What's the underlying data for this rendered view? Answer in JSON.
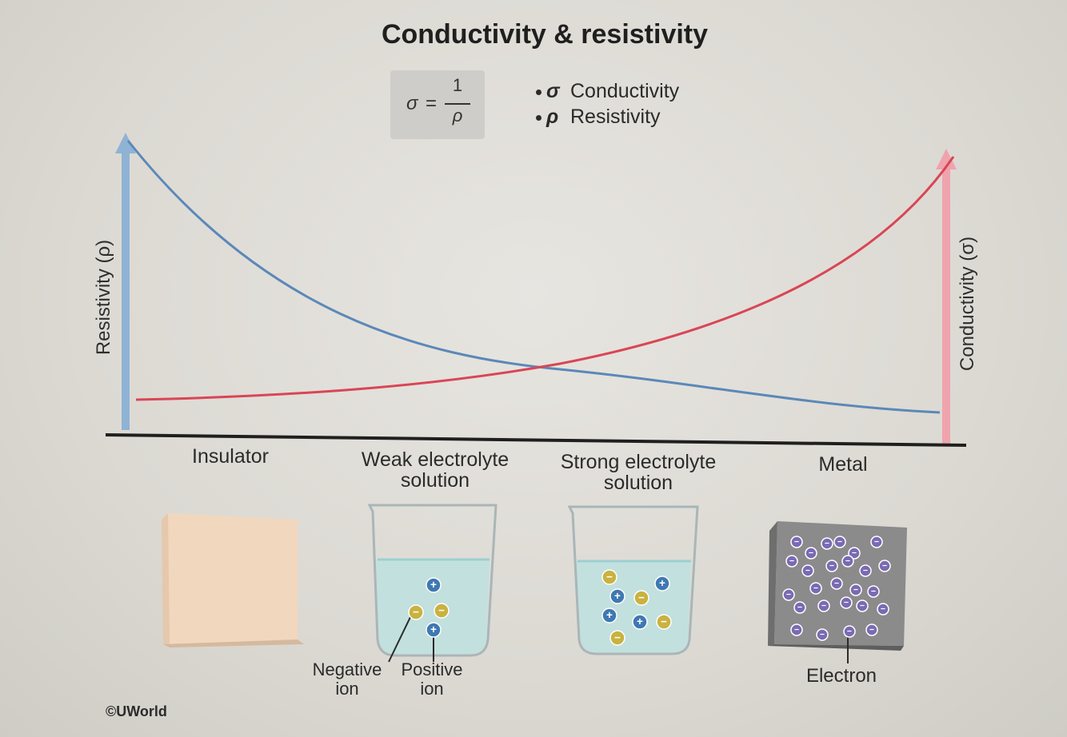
{
  "title": "Conductivity & resistivity",
  "formula": {
    "lhs": "σ",
    "eq": "=",
    "numerator": "1",
    "denominator": "ρ"
  },
  "legend": [
    {
      "symbol": "σ",
      "label": "Conductivity"
    },
    {
      "symbol": "ρ",
      "label": "Resistivity"
    }
  ],
  "axes": {
    "left_label": "Resistivity (ρ)",
    "right_label": "Conductivity (σ)",
    "left_color": "#8fb3d4",
    "right_color": "#f0a3ad"
  },
  "categories": [
    {
      "line1": "Insulator",
      "line2": ""
    },
    {
      "line1": "Weak electrolyte",
      "line2": "solution"
    },
    {
      "line1": "Strong electrolyte",
      "line2": "solution"
    },
    {
      "line1": "Metal",
      "line2": ""
    }
  ],
  "chart_data": {
    "type": "line",
    "title": "Conductivity & resistivity",
    "categories": [
      "Insulator",
      "Weak electrolyte solution",
      "Strong electrolyte solution",
      "Metal"
    ],
    "ylabel_left": "Resistivity (ρ)",
    "ylabel_right": "Conductivity (σ)",
    "series": [
      {
        "name": "Resistivity",
        "color": "#5b88b8",
        "trend": "decreasing"
      },
      {
        "name": "Conductivity",
        "color": "#d94655",
        "trend": "increasing"
      }
    ]
  },
  "labels": {
    "negative_ion": [
      "Negative",
      "ion"
    ],
    "positive_ion": [
      "Positive",
      "ion"
    ],
    "electron": "Electron"
  },
  "ions": {
    "negative_symbol": "−",
    "positive_symbol": "+"
  },
  "colors": {
    "negative_ion": "#c9b240",
    "positive_ion": "#3f78b3",
    "electron": "#7a6ab3",
    "solution": "#bfe0df",
    "insulator": "#f1d7be",
    "metal": "#8b8b8b"
  },
  "copyright": "©UWorld"
}
